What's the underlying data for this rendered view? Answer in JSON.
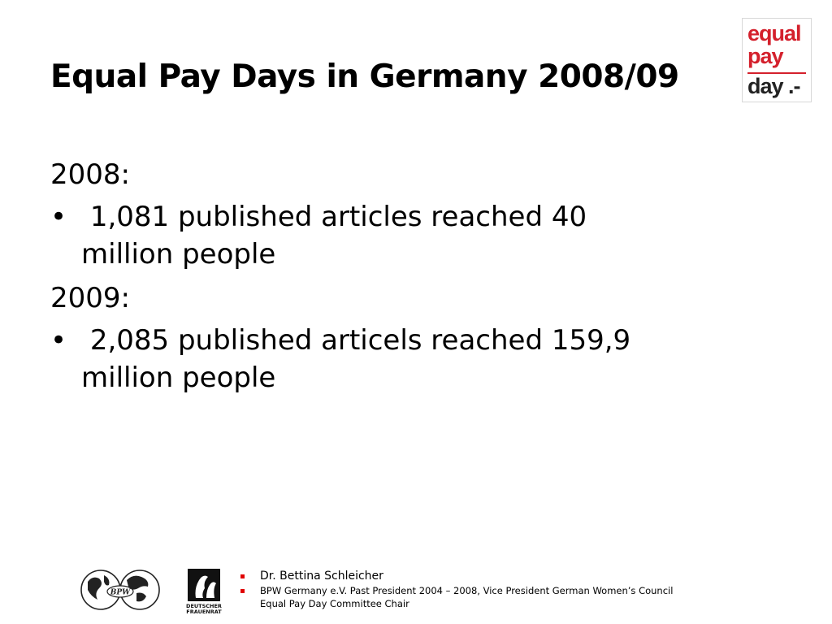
{
  "slide": {
    "title": "Equal Pay Days in Germany 2008/09",
    "logo": {
      "line1": "equal",
      "line2": "pay",
      "line3": "day .-",
      "brand_color": "#d4202c"
    },
    "sections": [
      {
        "year": "2008:",
        "bullet_glyph": "•",
        "line1": "1,081 published articles reached 40",
        "line2": "million people"
      },
      {
        "year": "2009:",
        "bullet_glyph": "•",
        "line1": "2,085 published articels reached 159,9",
        "line2": "million people"
      }
    ],
    "footer": {
      "bpw_logo_label": "BPW",
      "frauenrat_label_line1": "DEUTSCHER",
      "frauenrat_label_line2": "FRAUENRAT",
      "name": "Dr. Bettina Schleicher",
      "role_line1": "BPW Germany e.V. Past President 2004 – 2008, Vice President German Women’s Council",
      "role_line2": "Equal Pay Day Committee Chair",
      "bullet_color": "#e00000"
    }
  }
}
